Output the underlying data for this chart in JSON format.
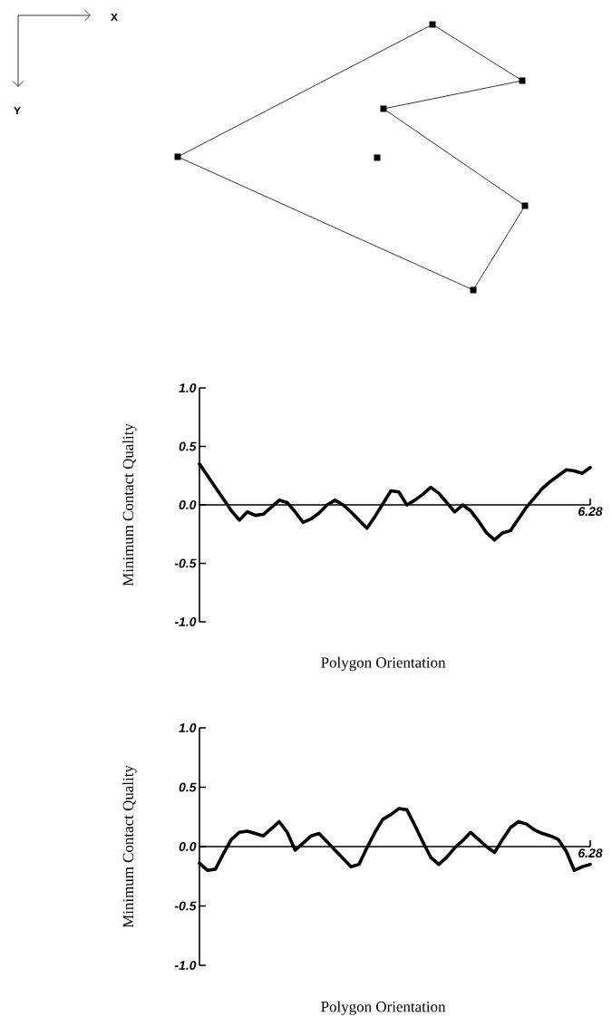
{
  "chart_data": [
    {
      "type": "other",
      "annotations": [
        "X",
        "Y"
      ]
    },
    {
      "type": "line",
      "xlabel": "Polygon Orientation",
      "ylabel": "Minimum Contact Quality",
      "color": "#000000",
      "line_style": "solid",
      "ylim": [
        -1,
        1
      ],
      "annotations": [
        "6.28"
      ],
      "yticks": [
        {
          "value": -1,
          "label": "-1.0"
        },
        {
          "value": -0.5,
          "label": "-0.5"
        },
        {
          "value": 0,
          "label": "0.0"
        },
        {
          "value": 0.5,
          "label": "0.5"
        },
        {
          "value": 1,
          "label": "1.0"
        }
      ],
      "categories": [
        null,
        null,
        null,
        null,
        null,
        null,
        null,
        null,
        null,
        null,
        null,
        null,
        null,
        null,
        null,
        null,
        null,
        null,
        null,
        null,
        null,
        null,
        null,
        null,
        null,
        null,
        null,
        null,
        null,
        null,
        null,
        null,
        null,
        null,
        null,
        null,
        null,
        null,
        null,
        null,
        null,
        null,
        null,
        null,
        null,
        null,
        null,
        null,
        null,
        null
      ],
      "values": [
        0.35,
        0.25,
        0.15,
        0.05,
        -0.05,
        -0.13,
        -0.06,
        -0.09,
        -0.08,
        -0.02,
        0.04,
        0.02,
        -0.06,
        -0.15,
        -0.12,
        -0.07,
        0.0,
        0.04,
        0.0,
        -0.06,
        -0.13,
        -0.2,
        -0.1,
        0.01,
        0.12,
        0.11,
        0.0,
        0.04,
        0.09,
        0.15,
        0.1,
        0.02,
        -0.06,
        0.0,
        -0.05,
        -0.14,
        -0.24,
        -0.3,
        -0.24,
        -0.22,
        -0.12,
        -0.02,
        0.06,
        0.14,
        0.2,
        0.25,
        0.3,
        0.29,
        0.27,
        0.32
      ]
    },
    {
      "type": "line",
      "xlabel": "Polygon Orientation",
      "ylabel": "Minimum Contact Quality",
      "color": "#000000",
      "line_style": "solid",
      "ylim": [
        -1,
        1
      ],
      "annotations": [
        "6.28"
      ],
      "yticks": [
        {
          "value": -1,
          "label": "-1.0"
        },
        {
          "value": -0.5,
          "label": "-0.5"
        },
        {
          "value": 0,
          "label": "0.0"
        },
        {
          "value": 0.5,
          "label": "0.5"
        },
        {
          "value": 1,
          "label": "1.0"
        }
      ],
      "categories": [
        null,
        null,
        null,
        null,
        null,
        null,
        null,
        null,
        null,
        null,
        null,
        null,
        null,
        null,
        null,
        null,
        null,
        null,
        null,
        null,
        null,
        null,
        null,
        null,
        null,
        null,
        null,
        null,
        null,
        null,
        null,
        null,
        null,
        null,
        null,
        null,
        null,
        null,
        null,
        null,
        null,
        null,
        null,
        null,
        null,
        null,
        null,
        null,
        null,
        null
      ],
      "values": [
        -0.14,
        -0.2,
        -0.19,
        -0.06,
        0.06,
        0.12,
        0.13,
        0.11,
        0.09,
        0.15,
        0.21,
        0.12,
        -0.03,
        0.03,
        0.09,
        0.11,
        0.04,
        -0.03,
        -0.1,
        -0.17,
        -0.15,
        -0.01,
        0.12,
        0.23,
        0.27,
        0.32,
        0.31,
        0.18,
        0.04,
        -0.09,
        -0.15,
        -0.09,
        -0.01,
        0.05,
        0.12,
        0.06,
        0.0,
        -0.05,
        0.06,
        0.16,
        0.21,
        0.19,
        0.14,
        0.11,
        0.09,
        0.06,
        -0.04,
        -0.2,
        -0.17,
        -0.15
      ]
    }
  ]
}
